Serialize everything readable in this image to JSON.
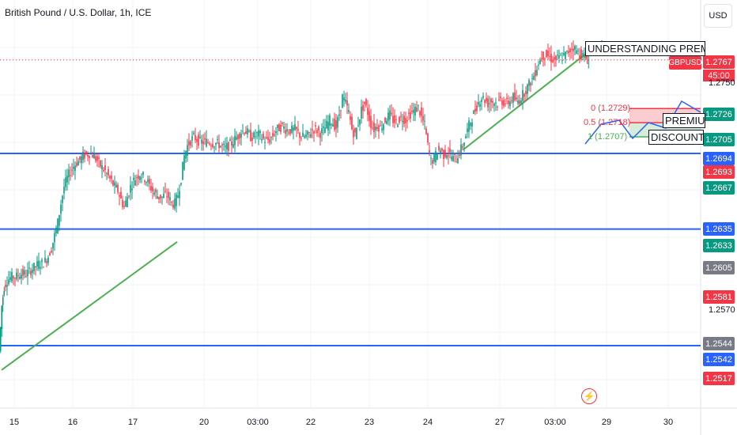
{
  "chart_title": "British Pound / U.S. Dollar, 1h, ICE",
  "currency_button": "USD",
  "symbol_tag": "GBPUSD",
  "countdown": "45:00",
  "colors": {
    "up": "#089981",
    "down": "#f23645",
    "level_line": "#2962ff",
    "trend_line": "#4caf50",
    "grid": "#f0f3fa"
  },
  "event_icon": "lightning-icon",
  "chart_data": {
    "type": "candlestick",
    "symbol": "GBPUSD",
    "interval": "1h",
    "x_tick_labels": [
      "15",
      "16",
      "17",
      "20",
      "03:00",
      "22",
      "23",
      "24",
      "27",
      "03:00",
      "29",
      "30"
    ],
    "y_range": [
      1.249,
      1.28
    ],
    "y_axis_ticks": [
      "1.2750",
      "1.2570"
    ],
    "current_price": "1.2767",
    "horizontal_levels": [
      1.2694,
      1.2635,
      1.2544
    ],
    "price_tags": [
      {
        "value": "1.2767",
        "color": "#f23645"
      },
      {
        "value": "1.2726",
        "color": "#089981"
      },
      {
        "value": "1.2705",
        "color": "#089981"
      },
      {
        "value": "1.2694",
        "color": "#2962ff"
      },
      {
        "value": "1.2693",
        "color": "#f23645"
      },
      {
        "value": "1.2667",
        "color": "#089981"
      },
      {
        "value": "1.2635",
        "color": "#2962ff"
      },
      {
        "value": "1.2633",
        "color": "#089981"
      },
      {
        "value": "1.2605",
        "color": "#787b86"
      },
      {
        "value": "1.2581",
        "color": "#f23645"
      },
      {
        "value": "1.2544",
        "color": "#787b86"
      },
      {
        "value": "1.2542",
        "color": "#2962ff"
      },
      {
        "value": "1.2517",
        "color": "#f23645"
      }
    ],
    "fib_levels": [
      {
        "label": "0 (1.2729)",
        "color": "#f23645"
      },
      {
        "label": "0.5 (1.2718)",
        "color": "#f23645"
      },
      {
        "label": "1 (1.2707)",
        "color": "#4caf50"
      }
    ],
    "zone_labels": [
      "UNDERSTANDING PREMIUM",
      "PREMIUM",
      "DISCOUNT"
    ],
    "price_path": [
      [
        0,
        1.254
      ],
      [
        3,
        1.2575
      ],
      [
        6,
        1.259
      ],
      [
        10,
        1.2595
      ],
      [
        14,
        1.2597
      ],
      [
        18,
        1.2598
      ],
      [
        22,
        1.2598
      ],
      [
        26,
        1.26
      ],
      [
        30,
        1.26
      ],
      [
        34,
        1.26
      ],
      [
        38,
        1.2602
      ],
      [
        42,
        1.2604
      ],
      [
        46,
        1.2606
      ],
      [
        50,
        1.2608
      ],
      [
        54,
        1.2608
      ],
      [
        58,
        1.261
      ],
      [
        62,
        1.2614
      ],
      [
        66,
        1.262
      ],
      [
        70,
        1.263
      ],
      [
        74,
        1.264
      ],
      [
        78,
        1.2655
      ],
      [
        82,
        1.2668
      ],
      [
        86,
        1.2675
      ],
      [
        90,
        1.268
      ],
      [
        94,
        1.2684
      ],
      [
        98,
        1.2687
      ],
      [
        102,
        1.2689
      ],
      [
        106,
        1.2692
      ],
      [
        110,
        1.2693
      ],
      [
        114,
        1.2694
      ],
      [
        118,
        1.2693
      ],
      [
        122,
        1.269
      ],
      [
        126,
        1.2686
      ],
      [
        130,
        1.2683
      ],
      [
        134,
        1.268
      ],
      [
        138,
        1.2676
      ],
      [
        142,
        1.2672
      ],
      [
        146,
        1.2668
      ],
      [
        150,
        1.2665
      ],
      [
        154,
        1.2658
      ],
      [
        158,
        1.2652
      ],
      [
        162,
        1.266
      ],
      [
        166,
        1.2668
      ],
      [
        170,
        1.2673
      ],
      [
        174,
        1.2676
      ],
      [
        178,
        1.2678
      ],
      [
        182,
        1.2676
      ],
      [
        186,
        1.2673
      ],
      [
        190,
        1.2669
      ],
      [
        194,
        1.2665
      ],
      [
        198,
        1.2662
      ],
      [
        202,
        1.266
      ],
      [
        206,
        1.266
      ],
      [
        210,
        1.2662
      ],
      [
        214,
        1.266
      ],
      [
        218,
        1.2655
      ],
      [
        222,
        1.2655
      ],
      [
        226,
        1.2662
      ],
      [
        230,
        1.2675
      ],
      [
        234,
        1.2692
      ],
      [
        238,
        1.27
      ],
      [
        242,
        1.2704
      ],
      [
        246,
        1.2707
      ],
      [
        250,
        1.2705
      ],
      [
        254,
        1.2703
      ],
      [
        258,
        1.2703
      ],
      [
        262,
        1.2703
      ],
      [
        266,
        1.2703
      ],
      [
        270,
        1.2702
      ],
      [
        274,
        1.2702
      ],
      [
        278,
        1.2701
      ],
      [
        282,
        1.2699
      ],
      [
        286,
        1.2698
      ],
      [
        290,
        1.27
      ],
      [
        294,
        1.2702
      ],
      [
        298,
        1.2705
      ],
      [
        302,
        1.2708
      ],
      [
        306,
        1.2711
      ],
      [
        310,
        1.2712
      ],
      [
        314,
        1.271
      ],
      [
        318,
        1.2707
      ],
      [
        322,
        1.2707
      ],
      [
        326,
        1.2709
      ],
      [
        330,
        1.2708
      ],
      [
        334,
        1.2705
      ],
      [
        338,
        1.2704
      ],
      [
        342,
        1.2705
      ],
      [
        346,
        1.2708
      ],
      [
        350,
        1.2712
      ],
      [
        354,
        1.2714
      ],
      [
        358,
        1.2715
      ],
      [
        362,
        1.2713
      ],
      [
        366,
        1.2712
      ],
      [
        370,
        1.2712
      ],
      [
        374,
        1.2713
      ],
      [
        378,
        1.271
      ],
      [
        382,
        1.2707
      ],
      [
        386,
        1.2707
      ],
      [
        390,
        1.2708
      ],
      [
        394,
        1.2711
      ],
      [
        398,
        1.2713
      ],
      [
        402,
        1.2712
      ],
      [
        406,
        1.271
      ],
      [
        410,
        1.2712
      ],
      [
        414,
        1.2716
      ],
      [
        418,
        1.272
      ],
      [
        422,
        1.2718
      ],
      [
        426,
        1.2714
      ],
      [
        430,
        1.2725
      ],
      [
        434,
        1.2738
      ],
      [
        438,
        1.2733
      ],
      [
        442,
        1.2726
      ],
      [
        446,
        1.2713
      ],
      [
        450,
        1.2708
      ],
      [
        454,
        1.2718
      ],
      [
        458,
        1.2728
      ],
      [
        462,
        1.2733
      ],
      [
        466,
        1.2726
      ],
      [
        470,
        1.2717
      ],
      [
        474,
        1.2713
      ],
      [
        478,
        1.2716
      ],
      [
        482,
        1.2714
      ],
      [
        486,
        1.2718
      ],
      [
        490,
        1.2722
      ],
      [
        494,
        1.2724
      ],
      [
        498,
        1.272
      ],
      [
        502,
        1.2718
      ],
      [
        506,
        1.2721
      ],
      [
        510,
        1.2722
      ],
      [
        514,
        1.272
      ],
      [
        518,
        1.2724
      ],
      [
        522,
        1.2726
      ],
      [
        526,
        1.2728
      ],
      [
        530,
        1.273
      ],
      [
        534,
        1.2722
      ],
      [
        538,
        1.2716
      ],
      [
        542,
        1.27
      ],
      [
        546,
        1.2688
      ],
      [
        550,
        1.269
      ],
      [
        554,
        1.2696
      ],
      [
        558,
        1.2697
      ],
      [
        562,
        1.2693
      ],
      [
        566,
        1.2695
      ],
      [
        570,
        1.2693
      ],
      [
        574,
        1.269
      ],
      [
        578,
        1.269
      ],
      [
        582,
        1.2695
      ],
      [
        586,
        1.27
      ],
      [
        590,
        1.2708
      ],
      [
        594,
        1.2716
      ],
      [
        598,
        1.2722
      ],
      [
        602,
        1.2728
      ],
      [
        606,
        1.2734
      ],
      [
        610,
        1.2738
      ],
      [
        614,
        1.2736
      ],
      [
        618,
        1.2733
      ],
      [
        622,
        1.2735
      ],
      [
        626,
        1.2734
      ],
      [
        630,
        1.2733
      ],
      [
        634,
        1.2736
      ],
      [
        638,
        1.2734
      ],
      [
        642,
        1.2733
      ],
      [
        646,
        1.2735
      ],
      [
        650,
        1.2738
      ],
      [
        654,
        1.2734
      ],
      [
        658,
        1.2736
      ],
      [
        662,
        1.274
      ],
      [
        666,
        1.2744
      ],
      [
        670,
        1.2748
      ],
      [
        674,
        1.2752
      ],
      [
        678,
        1.2758
      ],
      [
        682,
        1.2765
      ],
      [
        686,
        1.277
      ],
      [
        690,
        1.2771
      ],
      [
        694,
        1.277
      ],
      [
        698,
        1.2768
      ],
      [
        702,
        1.2767
      ],
      [
        706,
        1.2768
      ],
      [
        710,
        1.2769
      ],
      [
        714,
        1.277
      ],
      [
        718,
        1.2772
      ],
      [
        722,
        1.2775
      ],
      [
        726,
        1.2777
      ],
      [
        730,
        1.2774
      ],
      [
        734,
        1.2772
      ],
      [
        738,
        1.277
      ],
      [
        742,
        1.2768
      ],
      [
        745,
        1.2767
      ]
    ]
  }
}
